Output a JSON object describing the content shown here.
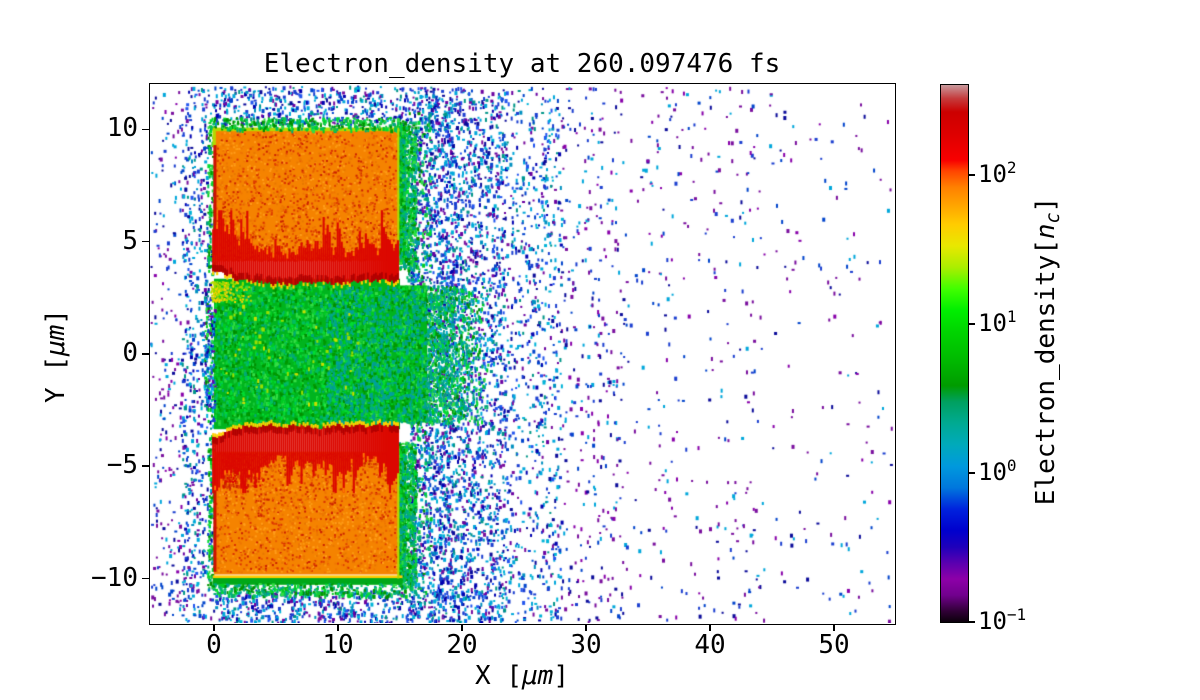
{
  "title": "Electron_density at 260.097476 fs",
  "axes": {
    "xlabel_prefix": "X [",
    "xlabel_math": "μm",
    "xlabel_suffix": "]",
    "ylabel_prefix": "Y [",
    "ylabel_math": "μm",
    "ylabel_suffix": "]",
    "xticks": [
      {
        "v": 0,
        "label": "0"
      },
      {
        "v": 10,
        "label": "10"
      },
      {
        "v": 20,
        "label": "20"
      },
      {
        "v": 30,
        "label": "30"
      },
      {
        "v": 40,
        "label": "40"
      },
      {
        "v": 50,
        "label": "50"
      }
    ],
    "yticks": [
      {
        "v": 10,
        "label": "10"
      },
      {
        "v": 5,
        "label": "5"
      },
      {
        "v": 0,
        "label": "0"
      },
      {
        "v": -5,
        "label": "−5"
      },
      {
        "v": -10,
        "label": "−10"
      }
    ],
    "xlim": [
      -5.16,
      54.84
    ],
    "ylim": [
      -11.98,
      12.02
    ]
  },
  "colorbar": {
    "label_prefix": "Electron_density[",
    "label_math": "n",
    "label_sub": "c",
    "label_suffix": "]",
    "scale": "log",
    "vmin": 0.1,
    "vmax": 400,
    "ticks": [
      {
        "value": 100,
        "base": "10",
        "exp": "2"
      },
      {
        "value": 10,
        "base": "10",
        "exp": "1"
      },
      {
        "value": 1,
        "base": "10",
        "exp": "0"
      },
      {
        "value": 0.1,
        "base": "10",
        "exp": "−1"
      }
    ],
    "gradient_stops": [
      [
        "0%",
        "#0b000b"
      ],
      [
        "2%",
        "#300036"
      ],
      [
        "5%",
        "#71008e"
      ],
      [
        "8%",
        "#8d00a8"
      ],
      [
        "11%",
        "#5a00b0"
      ],
      [
        "14%",
        "#1e00bb"
      ],
      [
        "17%",
        "#0000cd"
      ],
      [
        "21%",
        "#0022dd"
      ],
      [
        "25%",
        "#0077dd"
      ],
      [
        "29%",
        "#0099dd"
      ],
      [
        "33%",
        "#00aabb"
      ],
      [
        "37%",
        "#00aa92"
      ],
      [
        "41%",
        "#00a060"
      ],
      [
        "44%",
        "#009c00"
      ],
      [
        "49%",
        "#00bb00"
      ],
      [
        "54%",
        "#00d400"
      ],
      [
        "58%",
        "#00ee00"
      ],
      [
        "62%",
        "#40ff00"
      ],
      [
        "66%",
        "#aaee00"
      ],
      [
        "70%",
        "#e8e800"
      ],
      [
        "74%",
        "#ffcc00"
      ],
      [
        "78%",
        "#ffa000"
      ],
      [
        "81%",
        "#ff8000"
      ],
      [
        "84%",
        "#ff4400"
      ],
      [
        "86%",
        "#f80000"
      ],
      [
        "91%",
        "#dd0000"
      ],
      [
        "95%",
        "#cc0000"
      ],
      [
        "97.5%",
        "#c53b3c"
      ],
      [
        "100%",
        "#c99a9d"
      ]
    ]
  },
  "chart_data": {
    "type": "heatmap",
    "title": "Electron_density at 260.097476 fs",
    "time_fs": 260.097476,
    "xlabel": "X [μm]",
    "ylabel": "Y [μm]",
    "xlim": [
      -5.16,
      54.84
    ],
    "ylim": [
      -11.98,
      12.02
    ],
    "x_ticks": [
      0,
      10,
      20,
      30,
      40,
      50
    ],
    "y_ticks": [
      10,
      5,
      0,
      -5,
      -10
    ],
    "colormap": "nipy_spectral",
    "color_scale": "log",
    "clim": [
      0.1,
      400
    ],
    "colorbar_label": "Electron_density[n_c]",
    "background_value": 0,
    "regions": [
      {
        "name": "upper-target-bulk",
        "shape": "rect",
        "x": [
          0,
          14.9
        ],
        "y": [
          4.15,
          10.02
        ],
        "density_nc": 100,
        "color": "#f58300",
        "note": "solid target slab, orange, sparse red speckle"
      },
      {
        "name": "lower-target-bulk",
        "shape": "rect",
        "x": [
          0,
          14.9
        ],
        "y": [
          -9.82,
          -4.35
        ],
        "density_nc": 100,
        "color": "#f58300",
        "note": "solid target slab, orange, red speckle patch near top-left"
      },
      {
        "name": "upper-target-front-layer",
        "shape": "band",
        "x": [
          -0.2,
          14.9
        ],
        "y": [
          2.9,
          4.4
        ],
        "density_nc": 200,
        "color": "#dc0800",
        "note": "compressed rippled ablation front, flame spikes up to y=6"
      },
      {
        "name": "lower-target-front-layer",
        "shape": "band",
        "x": [
          -0.2,
          14.9
        ],
        "y": [
          -4.4,
          -2.95
        ],
        "density_nc": 200,
        "color": "#dc0800",
        "note": "compressed rippled ablation front, flame spikes down to y=-5.8"
      },
      {
        "name": "channel-plasma",
        "shape": "rect",
        "x": [
          0,
          17.2
        ],
        "y": [
          -3.05,
          3.05
        ],
        "density_nc": 8,
        "color": "#00b41e",
        "note": "green plasma filling gap between targets, ragged edge fading to x=22"
      },
      {
        "name": "target-skin",
        "shape": "outline",
        "density_nc": 30,
        "color": "#b5d900",
        "note": "thin yellow-green skin on outer target edges with green fringe"
      },
      {
        "name": "coronal-halo",
        "shape": "cloud",
        "x": [
          -3,
          28
        ],
        "y": [
          -12,
          12
        ],
        "density_nc": 0.7,
        "color": "#1b3fd0",
        "note": "dense blue/cyan speckle surrounding targets"
      },
      {
        "name": "sparse-blowoff",
        "shape": "cloud",
        "x": [
          28,
          54.8
        ],
        "y": [
          -12,
          12
        ],
        "density_nc": 0.2,
        "color": "#7a0f9e",
        "note": "sparse blue/purple dots thinning toward right edge"
      }
    ]
  }
}
